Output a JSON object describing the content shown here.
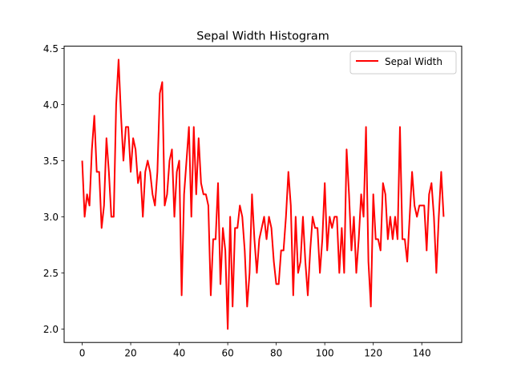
{
  "chart_data": {
    "type": "line",
    "title": "Sepal Width Histogram",
    "xlabel": "",
    "ylabel": "",
    "xlim": [
      -7.45,
      156.45
    ],
    "ylim": [
      1.88,
      4.52
    ],
    "xticks": [
      0,
      20,
      40,
      60,
      80,
      100,
      120,
      140
    ],
    "yticks": [
      2.0,
      2.5,
      3.0,
      3.5,
      4.0,
      4.5
    ],
    "grid": false,
    "legend_position": "top-right",
    "series": [
      {
        "name": "Sepal Width",
        "color": "#ff0000",
        "x": [
          0,
          1,
          2,
          3,
          4,
          5,
          6,
          7,
          8,
          9,
          10,
          11,
          12,
          13,
          14,
          15,
          16,
          17,
          18,
          19,
          20,
          21,
          22,
          23,
          24,
          25,
          26,
          27,
          28,
          29,
          30,
          31,
          32,
          33,
          34,
          35,
          36,
          37,
          38,
          39,
          40,
          41,
          42,
          43,
          44,
          45,
          46,
          47,
          48,
          49,
          50,
          51,
          52,
          53,
          54,
          55,
          56,
          57,
          58,
          59,
          60,
          61,
          62,
          63,
          64,
          65,
          66,
          67,
          68,
          69,
          70,
          71,
          72,
          73,
          74,
          75,
          76,
          77,
          78,
          79,
          80,
          81,
          82,
          83,
          84,
          85,
          86,
          87,
          88,
          89,
          90,
          91,
          92,
          93,
          94,
          95,
          96,
          97,
          98,
          99,
          100,
          101,
          102,
          103,
          104,
          105,
          106,
          107,
          108,
          109,
          110,
          111,
          112,
          113,
          114,
          115,
          116,
          117,
          118,
          119,
          120,
          121,
          122,
          123,
          124,
          125,
          126,
          127,
          128,
          129,
          130,
          131,
          132,
          133,
          134,
          135,
          136,
          137,
          138,
          139,
          140,
          141,
          142,
          143,
          144,
          145,
          146,
          147,
          148,
          149
        ],
        "y": [
          3.5,
          3.0,
          3.2,
          3.1,
          3.6,
          3.9,
          3.4,
          3.4,
          2.9,
          3.1,
          3.7,
          3.4,
          3.0,
          3.0,
          4.0,
          4.4,
          3.9,
          3.5,
          3.8,
          3.8,
          3.4,
          3.7,
          3.6,
          3.3,
          3.4,
          3.0,
          3.4,
          3.5,
          3.4,
          3.2,
          3.1,
          3.4,
          4.1,
          4.2,
          3.1,
          3.2,
          3.5,
          3.6,
          3.0,
          3.4,
          3.5,
          2.3,
          3.2,
          3.5,
          3.8,
          3.0,
          3.8,
          3.2,
          3.7,
          3.3,
          3.2,
          3.2,
          3.1,
          2.3,
          2.8,
          2.8,
          3.3,
          2.4,
          2.9,
          2.7,
          2.0,
          3.0,
          2.2,
          2.9,
          2.9,
          3.1,
          3.0,
          2.7,
          2.2,
          2.5,
          3.2,
          2.8,
          2.5,
          2.8,
          2.9,
          3.0,
          2.8,
          3.0,
          2.9,
          2.6,
          2.4,
          2.4,
          2.7,
          2.7,
          3.0,
          3.4,
          3.1,
          2.3,
          3.0,
          2.5,
          2.6,
          3.0,
          2.6,
          2.3,
          2.7,
          3.0,
          2.9,
          2.9,
          2.5,
          2.8,
          3.3,
          2.7,
          3.0,
          2.9,
          3.0,
          3.0,
          2.5,
          2.9,
          2.5,
          3.6,
          3.2,
          2.7,
          3.0,
          2.5,
          2.8,
          3.2,
          3.0,
          3.8,
          2.6,
          2.2,
          3.2,
          2.8,
          2.8,
          2.7,
          3.3,
          3.2,
          2.8,
          3.0,
          2.8,
          3.0,
          2.8,
          3.8,
          2.8,
          2.8,
          2.6,
          3.0,
          3.4,
          3.1,
          3.0,
          3.1,
          3.1,
          3.1,
          2.7,
          3.2,
          3.3,
          3.0,
          2.5,
          3.0,
          3.4,
          3.0
        ]
      }
    ]
  }
}
